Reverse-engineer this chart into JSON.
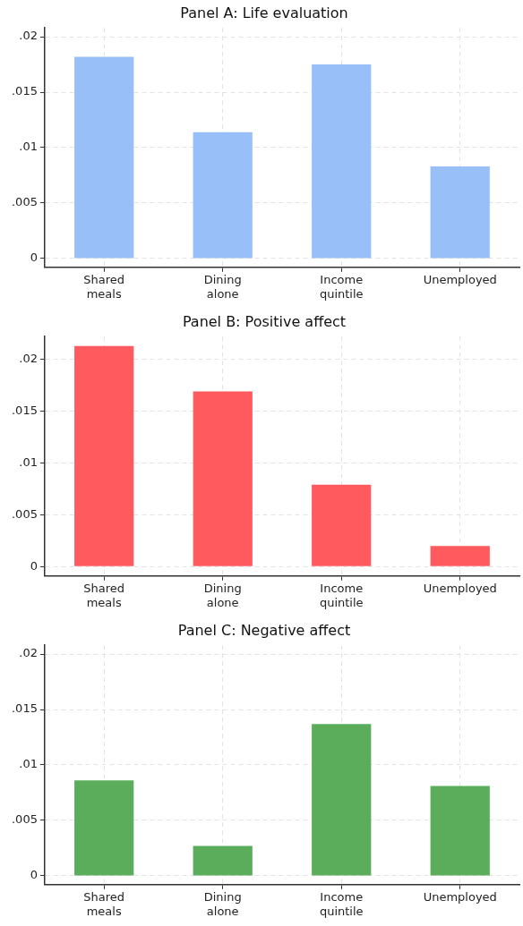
{
  "chart_data": [
    {
      "type": "bar",
      "title": "Panel A: Life evaluation",
      "categories": [
        "Shared meals",
        "Dining alone",
        "Income quintile",
        "Unemployed"
      ],
      "values": [
        0.0182,
        0.0114,
        0.0175,
        0.0083
      ],
      "color": "#99bff9",
      "ylim": [
        -0.0008,
        0.0208
      ],
      "yticks": [
        {
          "value": 0,
          "label": "0"
        },
        {
          "value": 0.005,
          "label": ".005"
        },
        {
          "value": 0.01,
          "label": ".01"
        },
        {
          "value": 0.015,
          "label": ".015"
        },
        {
          "value": 0.02,
          "label": ".02"
        }
      ],
      "grid": true,
      "legend": false
    },
    {
      "type": "bar",
      "title": "Panel B: Positive affect",
      "categories": [
        "Shared meals",
        "Dining alone",
        "Income quintile",
        "Unemployed"
      ],
      "values": [
        0.0213,
        0.0169,
        0.0079,
        0.002
      ],
      "color": "#ff5a5e",
      "ylim": [
        -0.0009,
        0.0222
      ],
      "yticks": [
        {
          "value": 0,
          "label": "0"
        },
        {
          "value": 0.005,
          "label": ".005"
        },
        {
          "value": 0.01,
          "label": ".01"
        },
        {
          "value": 0.015,
          "label": ".015"
        },
        {
          "value": 0.02,
          "label": ".02"
        }
      ],
      "grid": true,
      "legend": false
    },
    {
      "type": "bar",
      "title": "Panel C: Negative affect",
      "categories": [
        "Shared meals",
        "Dining alone",
        "Income quintile",
        "Unemployed"
      ],
      "values": [
        0.0086,
        0.0027,
        0.0137,
        0.0081
      ],
      "color": "#5bad5b",
      "ylim": [
        -0.0008,
        0.0208
      ],
      "yticks": [
        {
          "value": 0,
          "label": "0"
        },
        {
          "value": 0.005,
          "label": ".005"
        },
        {
          "value": 0.01,
          "label": ".01"
        },
        {
          "value": 0.015,
          "label": ".015"
        },
        {
          "value": 0.02,
          "label": ".02"
        }
      ],
      "grid": true,
      "legend": false
    }
  ]
}
